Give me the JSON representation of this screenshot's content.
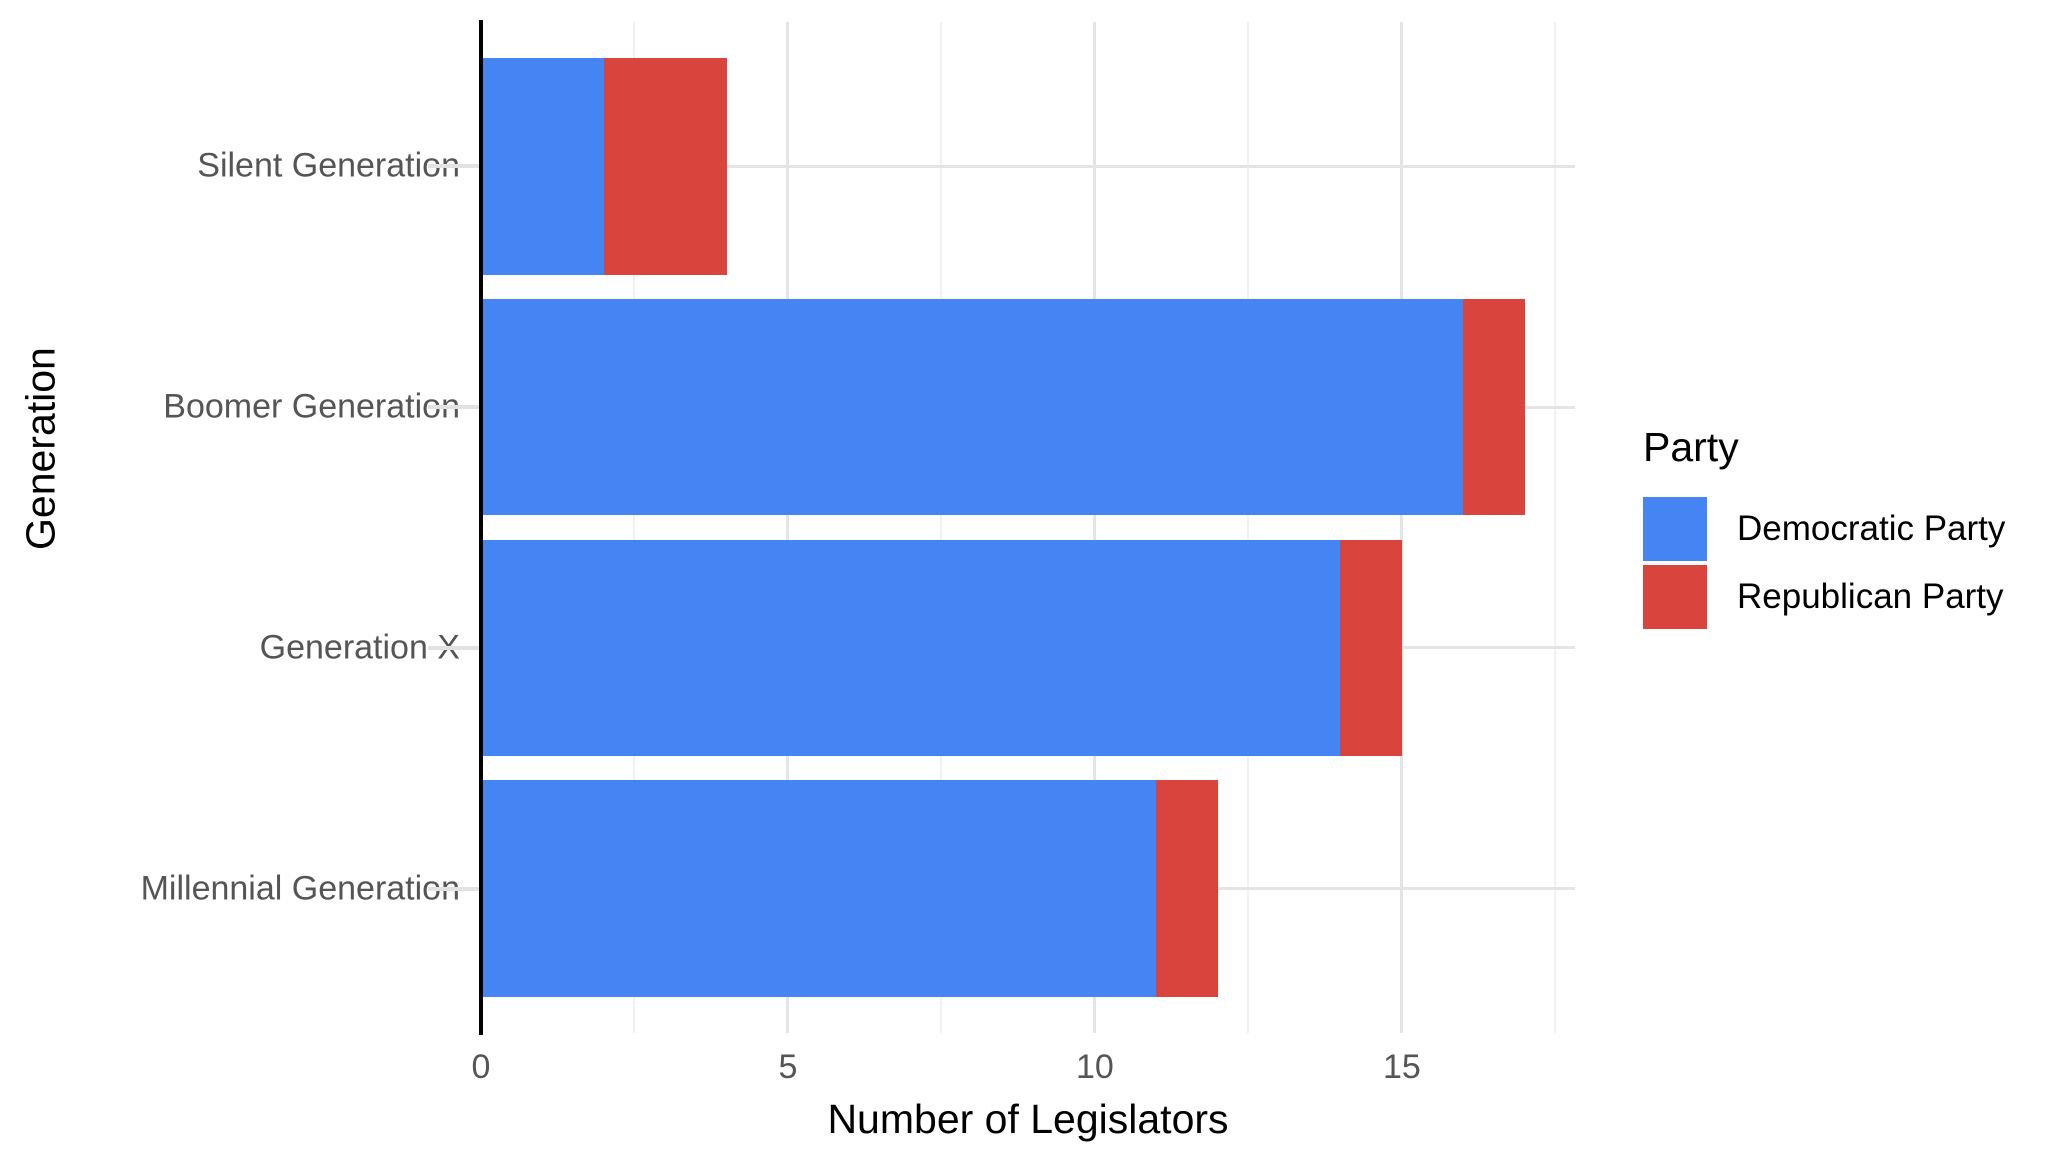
{
  "chart_data": {
    "type": "bar",
    "orientation": "horizontal",
    "stacked": true,
    "title": "",
    "xlabel": "Number of Legislators",
    "ylabel": "Generation",
    "categories": [
      "Silent Generation",
      "Boomer Generation",
      "Generation X",
      "Millennial Generation"
    ],
    "series": [
      {
        "name": "Democratic Party",
        "color": "#4484F3",
        "values": [
          2,
          16,
          14,
          11
        ]
      },
      {
        "name": "Republican Party",
        "color": "#D9453C",
        "values": [
          2,
          1,
          1,
          1
        ]
      }
    ],
    "totals": [
      4,
      17,
      15,
      12
    ],
    "x_major_ticks": [
      0,
      5,
      10,
      15
    ],
    "x_minor_ticks": [
      2.5,
      7.5,
      12.5,
      17.5
    ],
    "xlim": [
      0,
      17.82
    ],
    "grid": {
      "major_color": "#E4E4E4",
      "minor_color": "#F1F1F1",
      "show": true
    },
    "axis_zero_line_color": "#000000",
    "y_tick_color": "#E2E2E2",
    "tick_label_color": "#555555",
    "axis_title_color": "#000000",
    "legend": {
      "title": "Party",
      "position": "right"
    }
  }
}
